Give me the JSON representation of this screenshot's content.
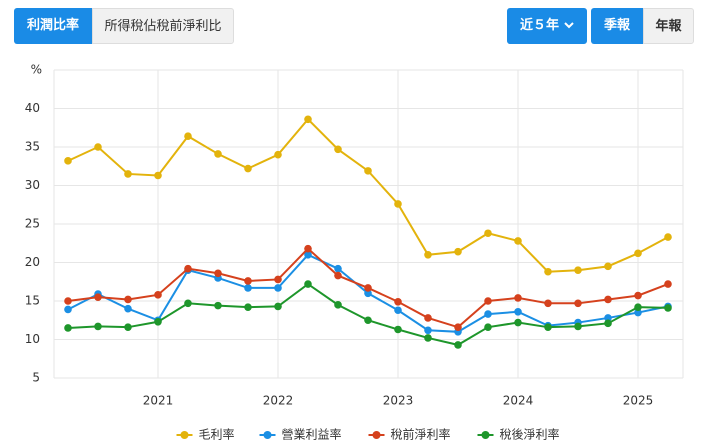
{
  "ui": {
    "tabs": [
      "利潤比率",
      "所得稅佔稅前淨利比"
    ],
    "period": "近５年",
    "frequency": [
      "季報",
      "年報"
    ]
  },
  "chart_data": {
    "type": "line",
    "y_label": "%",
    "categories": [
      null,
      null,
      null,
      "2021",
      null,
      null,
      null,
      "2022",
      null,
      null,
      null,
      "2023",
      null,
      null,
      null,
      "2024",
      null,
      null,
      null,
      "2025",
      null
    ],
    "ylim": [
      5,
      45
    ],
    "yticks": [
      5,
      10,
      15,
      20,
      25,
      30,
      35,
      40
    ],
    "grid": true,
    "legend": "bottom",
    "series": [
      {
        "name": "毛利率",
        "color": "#e3b30c",
        "values": [
          33.2,
          35.0,
          31.5,
          31.3,
          36.4,
          34.1,
          32.2,
          34.0,
          38.6,
          34.7,
          31.9,
          27.6,
          21.0,
          21.4,
          23.8,
          22.8,
          18.8,
          19.0,
          19.5,
          21.2,
          23.3
        ]
      },
      {
        "name": "營業利益率",
        "color": "#1b8fe4",
        "values": [
          13.9,
          15.9,
          14.0,
          12.5,
          19.0,
          18.0,
          16.7,
          16.7,
          21.0,
          19.2,
          16.0,
          13.8,
          11.2,
          11.0,
          13.3,
          13.6,
          11.8,
          12.2,
          12.8,
          13.5,
          14.3
        ]
      },
      {
        "name": "稅前淨利率",
        "color": "#d5411d",
        "values": [
          15.0,
          15.5,
          15.2,
          15.8,
          19.2,
          18.6,
          17.6,
          17.8,
          21.8,
          18.3,
          16.7,
          14.9,
          12.8,
          11.6,
          15.0,
          15.4,
          14.7,
          14.7,
          15.2,
          15.7,
          17.2
        ]
      },
      {
        "name": "稅後淨利率",
        "color": "#1e962b",
        "values": [
          11.5,
          11.7,
          11.6,
          12.3,
          14.7,
          14.4,
          14.2,
          14.3,
          17.2,
          14.5,
          12.5,
          11.3,
          10.2,
          9.3,
          11.6,
          12.2,
          11.6,
          11.7,
          12.1,
          14.2,
          14.1
        ]
      }
    ]
  }
}
